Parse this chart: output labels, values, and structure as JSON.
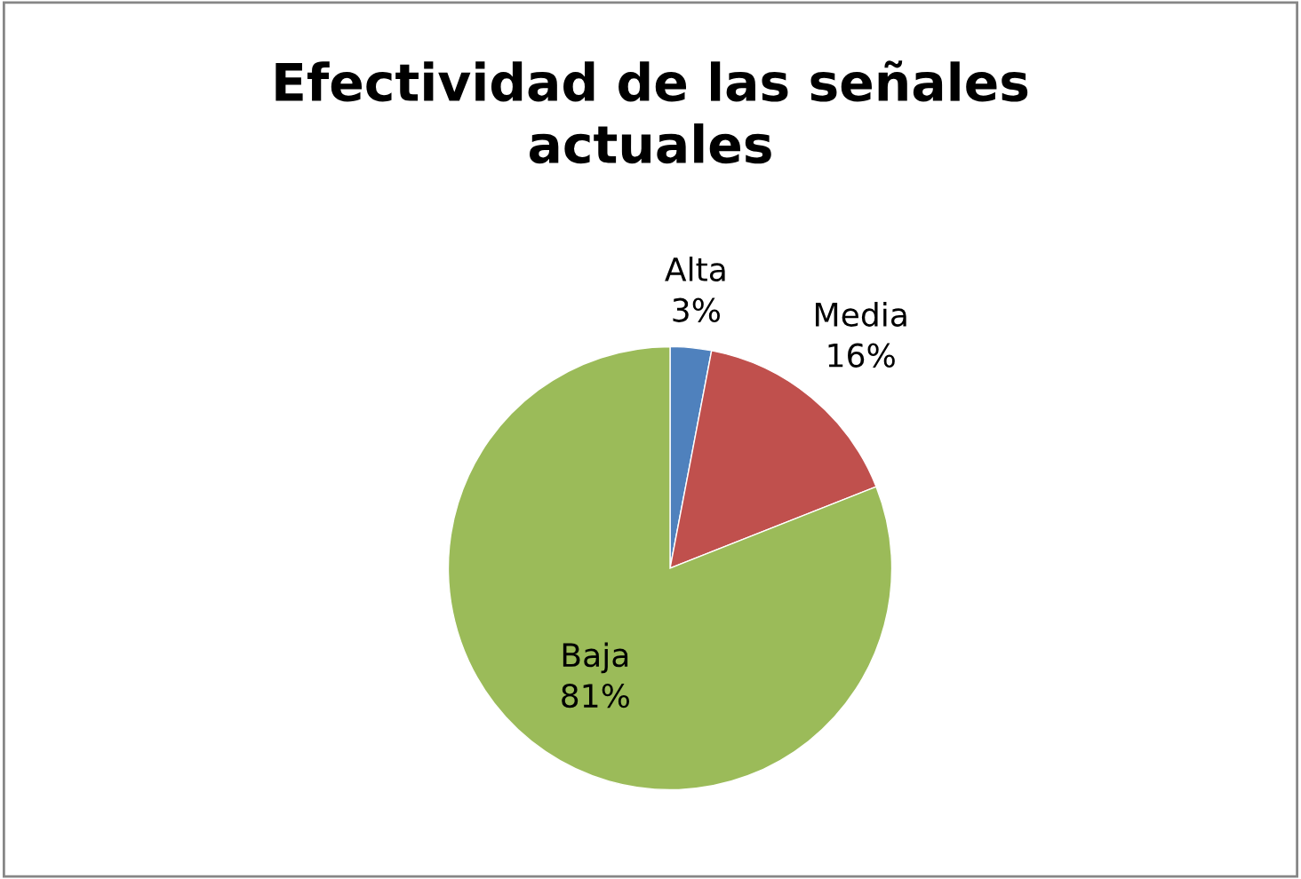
{
  "chart_data": {
    "type": "pie",
    "title": "Efectividad de las señales\nactuales",
    "categories": [
      "Alta",
      "Media",
      "Baja"
    ],
    "values": [
      3,
      16,
      81
    ],
    "colors": [
      "#4f81bd",
      "#c0504d",
      "#9bbb59"
    ],
    "value_labels": [
      "3%",
      "16%",
      "81%"
    ],
    "legend": false
  }
}
